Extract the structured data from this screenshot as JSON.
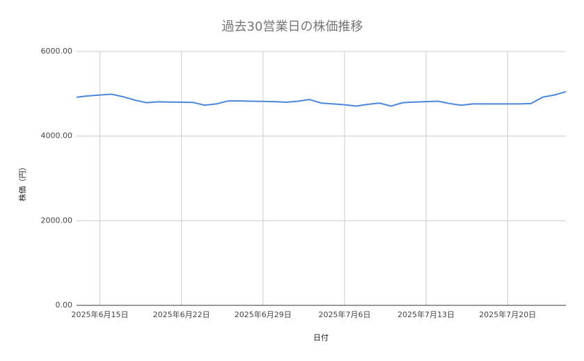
{
  "chart_data": {
    "type": "line",
    "title": "過去30営業日の株価推移",
    "x_label": "日付",
    "y_label": "株価（円）",
    "x": [
      "2025-06-13",
      "2025-06-14",
      "2025-06-15",
      "2025-06-16",
      "2025-06-17",
      "2025-06-18",
      "2025-06-19",
      "2025-06-20",
      "2025-06-21",
      "2025-06-22",
      "2025-06-23",
      "2025-06-24",
      "2025-06-25",
      "2025-06-26",
      "2025-06-27",
      "2025-06-28",
      "2025-06-29",
      "2025-06-30",
      "2025-07-01",
      "2025-07-02",
      "2025-07-03",
      "2025-07-04",
      "2025-07-05",
      "2025-07-06",
      "2025-07-07",
      "2025-07-08",
      "2025-07-09",
      "2025-07-10",
      "2025-07-11",
      "2025-07-12",
      "2025-07-13",
      "2025-07-14",
      "2025-07-15",
      "2025-07-16",
      "2025-07-17",
      "2025-07-18",
      "2025-07-19",
      "2025-07-20",
      "2025-07-21",
      "2025-07-22",
      "2025-07-23",
      "2025-07-24",
      "2025-07-25"
    ],
    "series": [
      {
        "color": "#4a86d8",
        "values": [
          4920,
          4950,
          4970,
          4990,
          4930,
          4850,
          4790,
          4810,
          4805,
          4800,
          4795,
          4730,
          4760,
          4830,
          4830,
          4825,
          4820,
          4815,
          4800,
          4825,
          4865,
          4780,
          4760,
          4740,
          4710,
          4750,
          4780,
          4710,
          4790,
          4805,
          4815,
          4825,
          4770,
          4730,
          4760,
          4760,
          4760,
          4760,
          4760,
          4770,
          4920,
          4970,
          5050
        ]
      }
    ],
    "xlim": [
      "2025-06-13",
      "2025-07-25"
    ],
    "xticks": [
      {
        "value": "2025-06-15",
        "label": "2025年6月15日"
      },
      {
        "value": "2025-06-22",
        "label": "2025年6月22日"
      },
      {
        "value": "2025-06-29",
        "label": "2025年6月29日"
      },
      {
        "value": "2025-07-06",
        "label": "2025年7月6日"
      },
      {
        "value": "2025-07-13",
        "label": "2025年7月13日"
      },
      {
        "value": "2025-07-20",
        "label": "2025年7月20日"
      }
    ],
    "ylim": [
      0,
      6000
    ],
    "yticks": [
      {
        "value": 0,
        "label": "0.00"
      },
      {
        "value": 2000,
        "label": "2000.00"
      },
      {
        "value": 4000,
        "label": "4000.00"
      },
      {
        "value": 6000,
        "label": "6000.00"
      }
    ],
    "grid": true
  }
}
